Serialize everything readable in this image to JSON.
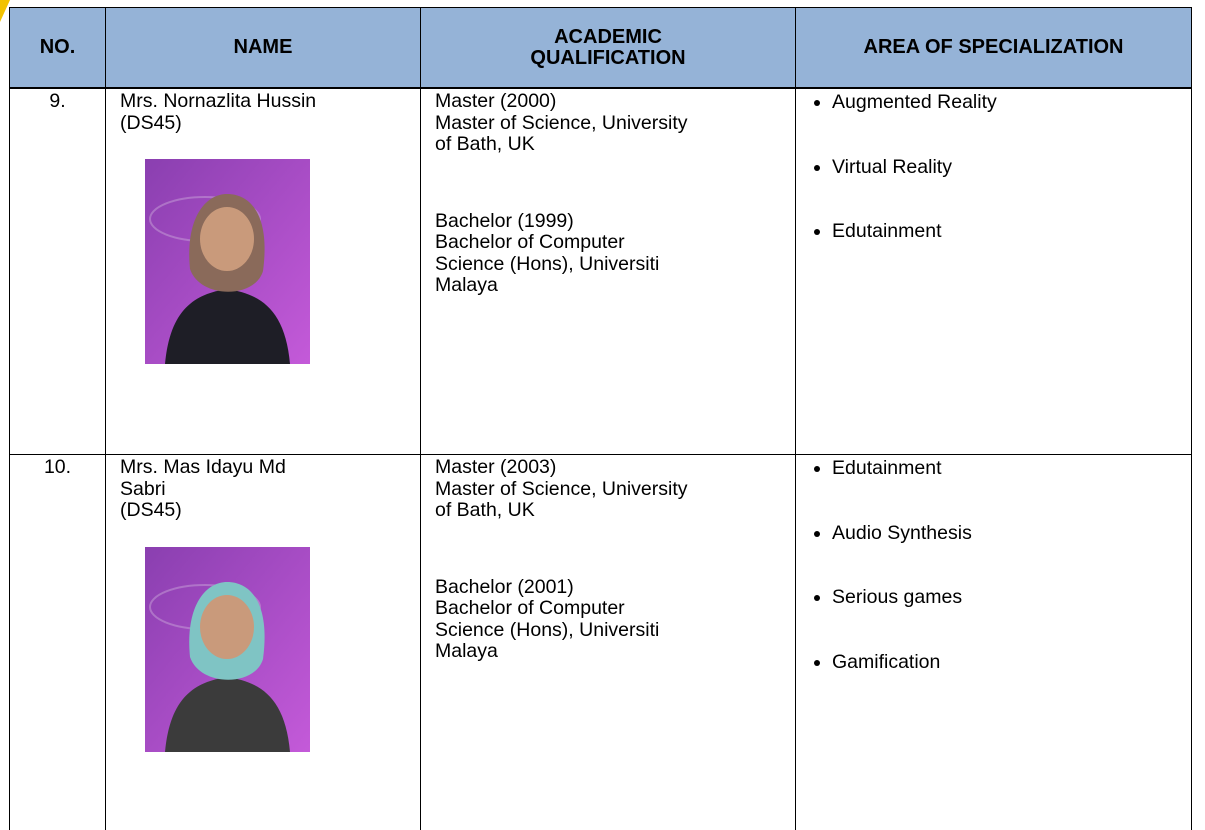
{
  "header": {
    "no": "NO.",
    "name": "NAME",
    "qualification": "ACADEMIC QUALIFICATION",
    "specialization": "AREA OF SPECIALIZATION"
  },
  "rows": [
    {
      "no": "9.",
      "name": [
        "Mrs. Nornazlita Hussin",
        "(DS45)"
      ],
      "qualifications": [
        {
          "title": "Master (2000)",
          "lines": [
            "Master of Science, University",
            "of Bath, UK"
          ]
        },
        {
          "title": "Bachelor (1999)",
          "lines": [
            "Bachelor of Computer",
            "Science (Hons), Universiti",
            "Malaya"
          ]
        }
      ],
      "specializations": [
        "Augmented Reality",
        "Virtual Reality",
        "Edutainment"
      ]
    },
    {
      "no": "10.",
      "name": [
        "Mrs. Mas Idayu Md",
        "Sabri",
        "(DS45)"
      ],
      "qualifications": [
        {
          "title": "Master (2003)",
          "lines": [
            "Master of Science, University",
            "of Bath, UK"
          ]
        },
        {
          "title": "Bachelor (2001)",
          "lines": [
            "Bachelor of Computer",
            "Science (Hons), Universiti",
            "Malaya"
          ]
        }
      ],
      "specializations": [
        "Edutainment",
        "Audio Synthesis",
        "Serious games",
        "Gamification"
      ]
    }
  ]
}
